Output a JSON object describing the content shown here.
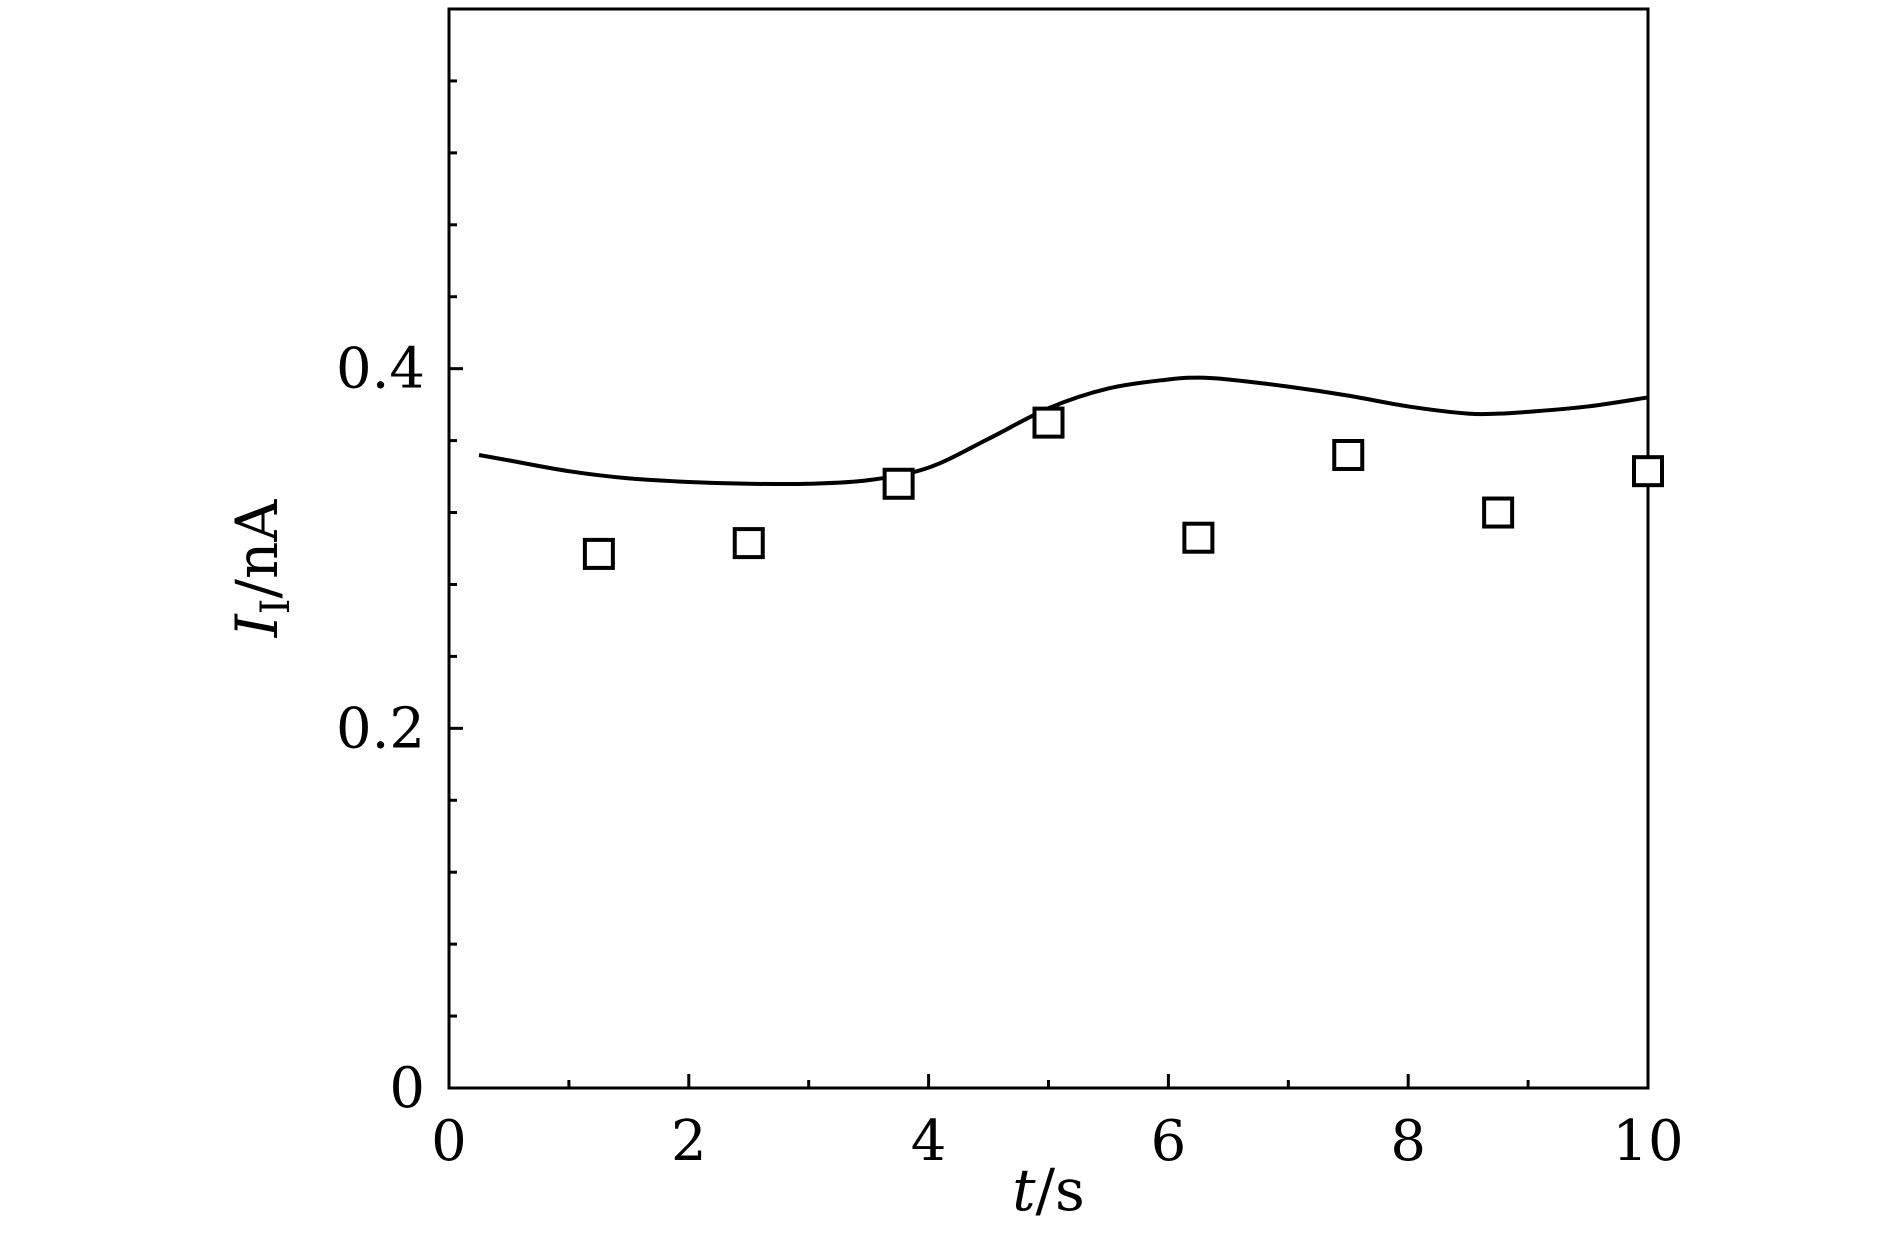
{
  "chart_data": {
    "type": "line",
    "title": "",
    "xlabel": {
      "var": "t",
      "unit": "/s"
    },
    "ylabel": {
      "var": "I",
      "sub": "I",
      "unit": "/nA"
    },
    "xlim": [
      0,
      10
    ],
    "ylim": [
      0,
      0.6
    ],
    "x_ticks": [
      0,
      2,
      4,
      6,
      8,
      10
    ],
    "x_tick_labels": [
      "0",
      "2",
      "4",
      "6",
      "8",
      "10"
    ],
    "x_minor_ticks": [
      1,
      3,
      5,
      7,
      9
    ],
    "y_ticks": [
      0,
      0.2,
      0.4
    ],
    "y_tick_labels": [
      "0",
      "0.2",
      "0.4"
    ],
    "y_minor_step": 0.04,
    "grid": false,
    "legend": "none",
    "colors": {
      "line": "#000000",
      "marker": "#000000",
      "background": "#ffffff"
    },
    "series": [
      {
        "type": "line",
        "x": [
          0.25,
          0.5,
          1.0,
          1.5,
          2.0,
          2.5,
          3.0,
          3.5,
          4.0,
          4.5,
          5.0,
          5.5,
          6.0,
          6.25,
          6.5,
          7.0,
          7.5,
          8.0,
          8.5,
          8.75,
          9.0,
          9.5,
          10.0
        ],
        "y": [
          0.352,
          0.349,
          0.343,
          0.339,
          0.337,
          0.336,
          0.336,
          0.338,
          0.345,
          0.361,
          0.378,
          0.389,
          0.394,
          0.395,
          0.394,
          0.39,
          0.385,
          0.379,
          0.375,
          0.375,
          0.376,
          0.379,
          0.384
        ]
      },
      {
        "type": "scatter",
        "marker": "open-square",
        "x": [
          1.25,
          2.5,
          3.75,
          5.0,
          6.25,
          7.5,
          8.75,
          10.0
        ],
        "y": [
          0.297,
          0.303,
          0.336,
          0.37,
          0.306,
          0.352,
          0.32,
          0.343
        ]
      }
    ]
  }
}
